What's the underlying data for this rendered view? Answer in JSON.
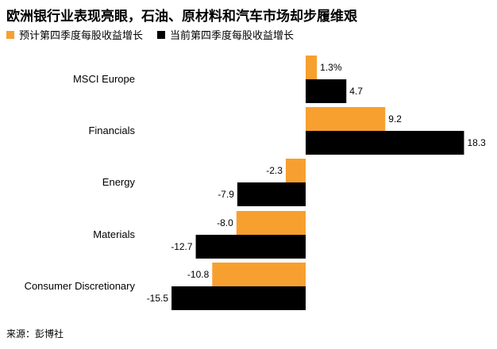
{
  "title": "欧洲银行业表现亮眼，石油、原材料和汽车市场却步履维艰",
  "source": "来源：彭博社",
  "colors": {
    "forecast": "#f7a030",
    "current": "#000000"
  },
  "chart_data": {
    "type": "bar",
    "orientation": "horizontal",
    "categories": [
      "MSCI Europe",
      "Financials",
      "Energy",
      "Materials",
      "Consumer Discretionary"
    ],
    "series": [
      {
        "name": "预计第四季度每股收益增长",
        "values": [
          1.3,
          9.2,
          -2.3,
          -8.0,
          -10.8
        ],
        "labels": [
          "1.3%",
          "9.2",
          "-2.3",
          "-8.0",
          "-10.8"
        ]
      },
      {
        "name": "当前第四季度每股收益增长",
        "values": [
          4.7,
          18.3,
          -7.9,
          -12.7,
          -15.5
        ],
        "labels": [
          "4.7",
          "18.3",
          "-7.9",
          "-12.7",
          "-15.5"
        ]
      }
    ],
    "xlim": [
      -15.5,
      18.3
    ],
    "legend": "top-left"
  }
}
